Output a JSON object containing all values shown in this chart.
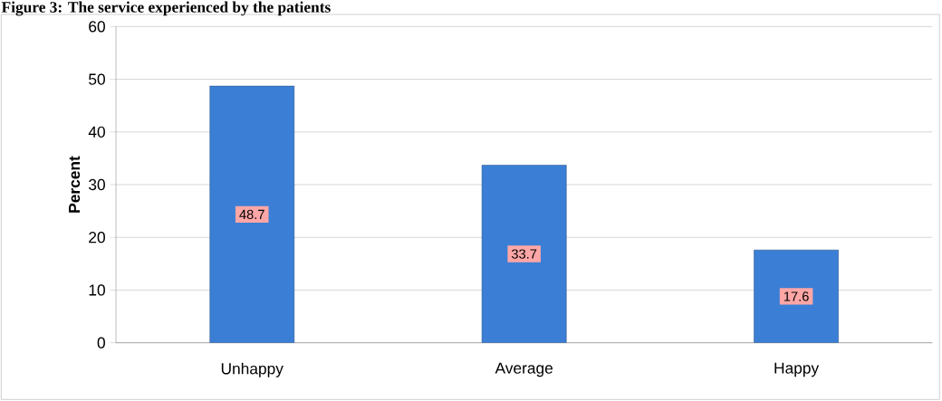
{
  "chart_data": {
    "type": "bar",
    "title": "Figure 3: The service experienced by the patients",
    "ylabel": "Percent",
    "categories": [
      "Unhappy",
      "Average",
      "Happy"
    ],
    "values": [
      48.7,
      33.7,
      17.6
    ],
    "color": "#3a7fd5",
    "ylim": [
      0,
      60
    ],
    "yticks": [
      0,
      10,
      20,
      30,
      40,
      50,
      60
    ],
    "grid": "y",
    "data_labels": true
  }
}
